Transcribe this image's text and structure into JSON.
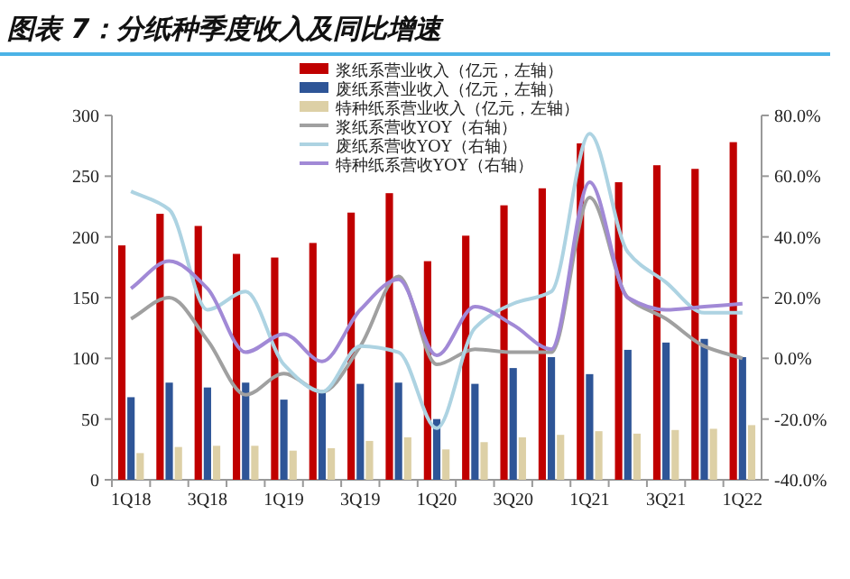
{
  "chart_data": {
    "type": "bar",
    "title": "图表 7：分纸种季度收入及同比增速",
    "categories": [
      "1Q18",
      null,
      "3Q18",
      null,
      "1Q19",
      null,
      "3Q19",
      null,
      "1Q20",
      null,
      "3Q20",
      null,
      "1Q21",
      null,
      "3Q21",
      null,
      "1Q22"
    ],
    "series": [
      {
        "name": "浆纸系营业收入（亿元，左轴）",
        "color": "#c00000",
        "values": [
          193,
          219,
          209,
          186,
          183,
          195,
          220,
          236,
          180,
          201,
          226,
          240,
          277,
          245,
          259,
          256,
          278
        ]
      },
      {
        "name": "废纸系营业收入（亿元，左轴）",
        "color": "#2e5597",
        "values": [
          68,
          80,
          76,
          80,
          66,
          72,
          79,
          80,
          50,
          79,
          92,
          101,
          87,
          107,
          113,
          116,
          101
        ]
      },
      {
        "name": "特种纸系营业收入（亿元，左轴）",
        "color": "#ddd0a6",
        "values": [
          22,
          27,
          28,
          28,
          24,
          26,
          32,
          35,
          25,
          31,
          35,
          37,
          40,
          38,
          41,
          42,
          45
        ]
      },
      {
        "name": "浆纸系营收YOY（右轴）",
        "type": "line",
        "axis": "y2",
        "color": "#a0a0a0",
        "values": [
          13,
          20,
          6,
          -12,
          -5,
          -11,
          4,
          27,
          -2,
          3,
          2,
          2,
          53,
          20,
          13,
          4,
          0
        ]
      },
      {
        "name": "废纸系营收YOY（右轴）",
        "type": "line",
        "axis": "y2",
        "color": "#add3e2",
        "values": [
          55,
          49,
          16,
          22,
          -2,
          -11,
          4,
          2,
          -23,
          10,
          18,
          22,
          74,
          35,
          25,
          15,
          15
        ]
      },
      {
        "name": "特种纸系营收YOY（右轴）",
        "type": "line",
        "axis": "y2",
        "color": "#a189d6",
        "values": [
          23,
          32,
          23,
          2,
          8,
          -1,
          16,
          26,
          1,
          17,
          11,
          3,
          58,
          20,
          16,
          17,
          18
        ]
      }
    ],
    "ylim": [
      0,
      300
    ],
    "yticks": [
      0,
      50,
      100,
      150,
      200,
      250,
      300
    ],
    "y2lim": [
      -40,
      80
    ],
    "y2ticks": [
      {
        "value": -40,
        "label": "-40.0%"
      },
      {
        "value": -20,
        "label": "-20.0%"
      },
      {
        "value": 0,
        "label": "0.0%"
      },
      {
        "value": 20,
        "label": "20.0%"
      },
      {
        "value": 40,
        "label": "40.0%"
      },
      {
        "value": 60,
        "label": "60.0%"
      },
      {
        "value": 80,
        "label": "80.0%"
      }
    ],
    "legend": "top",
    "grid": false,
    "marker": "none",
    "line_style": "solid"
  }
}
